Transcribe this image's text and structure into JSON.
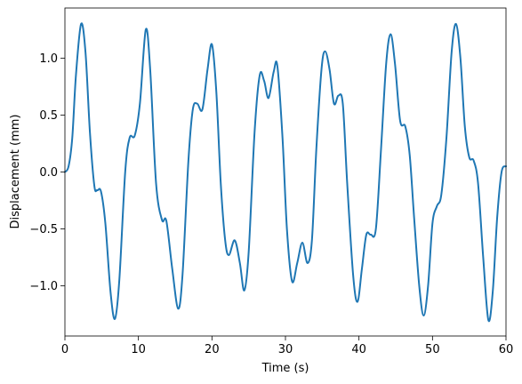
{
  "chart_data": {
    "type": "line",
    "title": "",
    "xlabel": "Time (s)",
    "ylabel": "Displacement (mm)",
    "xlim": [
      0,
      60
    ],
    "ylim": [
      -1.44,
      1.44
    ],
    "grid": false,
    "xticks": [
      0,
      10,
      20,
      30,
      40,
      50,
      60
    ],
    "xtick_labels": [
      "0",
      "10",
      "20",
      "30",
      "40",
      "50",
      "60"
    ],
    "yticks": [
      -1.0,
      -0.5,
      0.0,
      0.5,
      1.0
    ],
    "ytick_labels": [
      "−1.0",
      "−0.5",
      "0.0",
      "0.5",
      "1.0"
    ],
    "series": [
      {
        "color": "#1f77b4",
        "points": [
          [
            0,
            0.0
          ],
          [
            0.5,
            0.05
          ],
          [
            1.0,
            0.3
          ],
          [
            1.5,
            0.85
          ],
          [
            2.2,
            1.3
          ],
          [
            2.8,
            1.05
          ],
          [
            3.4,
            0.35
          ],
          [
            4.0,
            -0.12
          ],
          [
            4.4,
            -0.16
          ],
          [
            4.9,
            -0.17
          ],
          [
            5.5,
            -0.45
          ],
          [
            6.2,
            -1.05
          ],
          [
            6.8,
            -1.29
          ],
          [
            7.4,
            -0.95
          ],
          [
            8.2,
            0.0
          ],
          [
            8.8,
            0.3
          ],
          [
            9.5,
            0.32
          ],
          [
            10.2,
            0.6
          ],
          [
            11.0,
            1.25
          ],
          [
            11.6,
            0.9
          ],
          [
            12.4,
            -0.1
          ],
          [
            13.2,
            -0.42
          ],
          [
            13.8,
            -0.43
          ],
          [
            14.6,
            -0.85
          ],
          [
            15.4,
            -1.2
          ],
          [
            16.0,
            -0.9
          ],
          [
            16.8,
            0.1
          ],
          [
            17.4,
            0.55
          ],
          [
            18.0,
            0.6
          ],
          [
            18.7,
            0.55
          ],
          [
            19.4,
            0.9
          ],
          [
            20.0,
            1.12
          ],
          [
            20.6,
            0.7
          ],
          [
            21.2,
            -0.1
          ],
          [
            21.8,
            -0.6
          ],
          [
            22.3,
            -0.73
          ],
          [
            23.1,
            -0.6
          ],
          [
            23.8,
            -0.8
          ],
          [
            24.4,
            -1.04
          ],
          [
            25.0,
            -0.7
          ],
          [
            25.8,
            0.35
          ],
          [
            26.5,
            0.85
          ],
          [
            27.1,
            0.8
          ],
          [
            27.7,
            0.65
          ],
          [
            28.4,
            0.88
          ],
          [
            28.9,
            0.93
          ],
          [
            29.6,
            0.3
          ],
          [
            30.2,
            -0.5
          ],
          [
            30.9,
            -0.96
          ],
          [
            31.6,
            -0.8
          ],
          [
            32.3,
            -0.62
          ],
          [
            33.0,
            -0.8
          ],
          [
            33.6,
            -0.6
          ],
          [
            34.2,
            0.2
          ],
          [
            34.9,
            0.9
          ],
          [
            35.4,
            1.06
          ],
          [
            36.0,
            0.9
          ],
          [
            36.6,
            0.6
          ],
          [
            37.2,
            0.67
          ],
          [
            37.8,
            0.6
          ],
          [
            38.4,
            -0.1
          ],
          [
            39.2,
            -0.9
          ],
          [
            39.8,
            -1.14
          ],
          [
            40.4,
            -0.85
          ],
          [
            41.0,
            -0.55
          ],
          [
            41.6,
            -0.55
          ],
          [
            42.3,
            -0.5
          ],
          [
            43.0,
            0.2
          ],
          [
            43.7,
            0.95
          ],
          [
            44.3,
            1.21
          ],
          [
            44.9,
            0.95
          ],
          [
            45.6,
            0.45
          ],
          [
            46.3,
            0.4
          ],
          [
            46.9,
            0.15
          ],
          [
            47.5,
            -0.4
          ],
          [
            48.2,
            -1.0
          ],
          [
            48.8,
            -1.26
          ],
          [
            49.4,
            -1.0
          ],
          [
            50.0,
            -0.45
          ],
          [
            50.6,
            -0.3
          ],
          [
            51.2,
            -0.2
          ],
          [
            51.9,
            0.3
          ],
          [
            52.6,
            1.05
          ],
          [
            53.2,
            1.3
          ],
          [
            53.8,
            1.0
          ],
          [
            54.4,
            0.4
          ],
          [
            55.0,
            0.13
          ],
          [
            55.6,
            0.1
          ],
          [
            56.2,
            -0.1
          ],
          [
            56.9,
            -0.75
          ],
          [
            57.6,
            -1.3
          ],
          [
            58.2,
            -1.05
          ],
          [
            58.8,
            -0.4
          ],
          [
            59.4,
            0.0
          ],
          [
            60.0,
            0.05
          ]
        ]
      }
    ]
  }
}
